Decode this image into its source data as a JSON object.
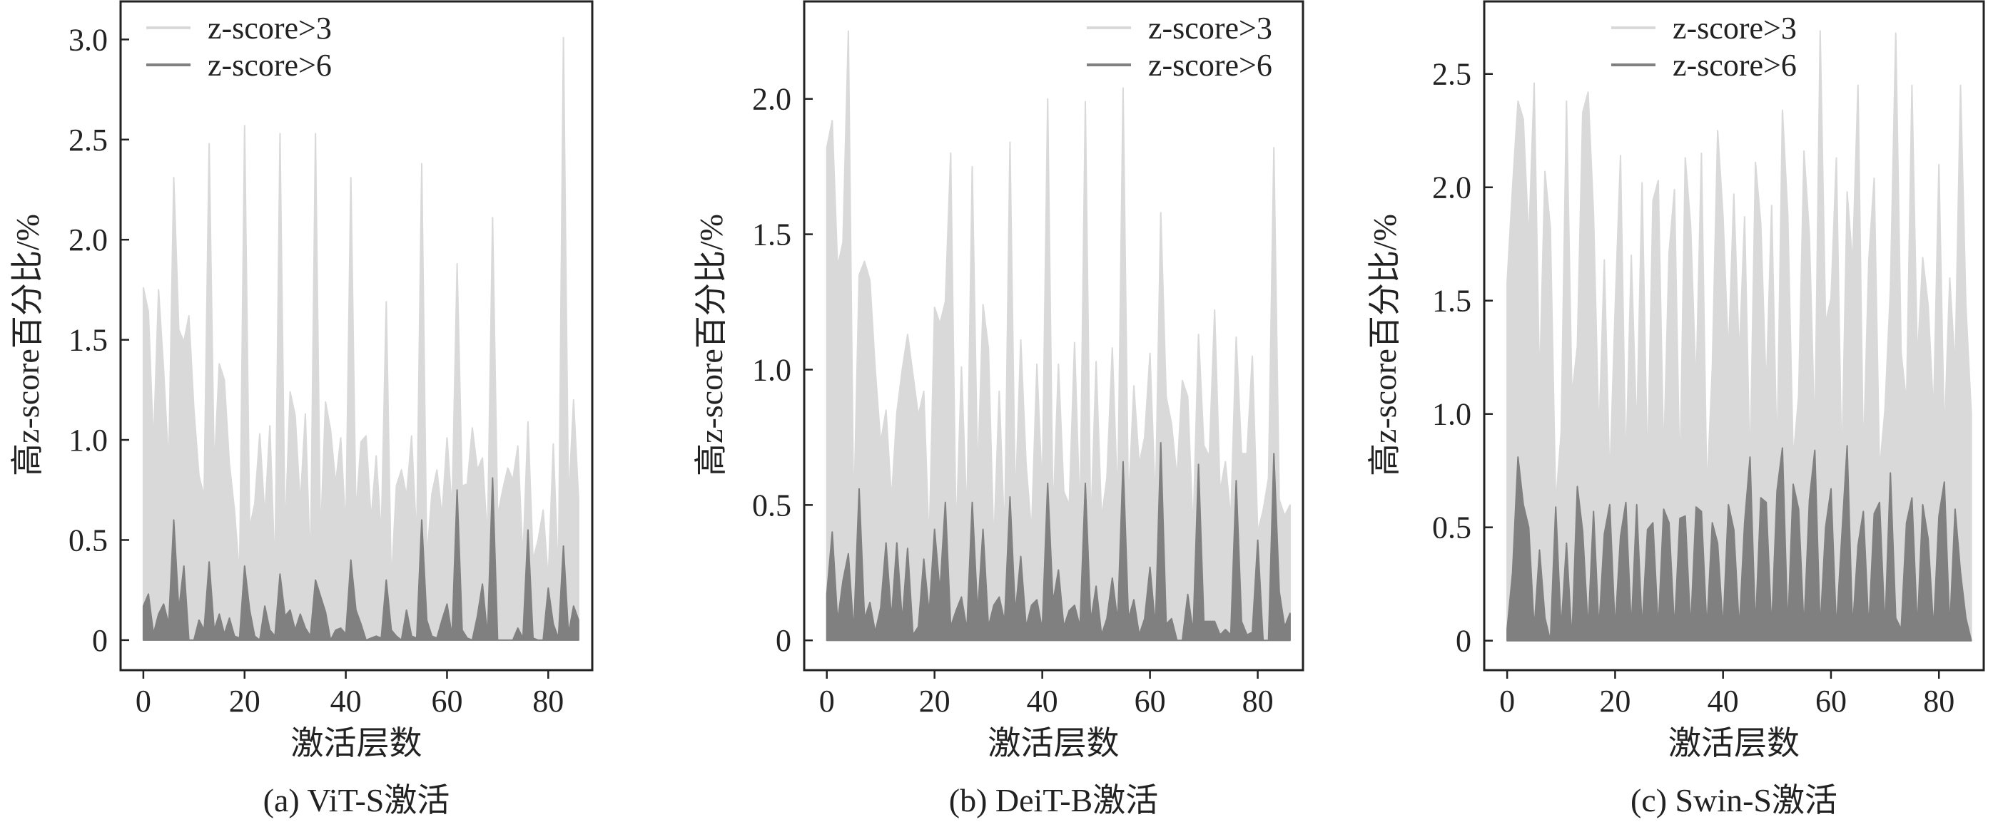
{
  "colors": {
    "z3": "#d9d9d9",
    "z6": "#808080",
    "axis": "#222222"
  },
  "chart_data": [
    {
      "type": "area",
      "caption": "(a)  ViT-S激活",
      "xlabel": "激活层数",
      "ylabel": "高z-score百分比/%",
      "xlim": [
        -4.5,
        88.7
      ],
      "ylim": [
        -0.15,
        3.19
      ],
      "xticks": [
        0,
        20,
        40,
        60,
        80
      ],
      "yticks": [
        0,
        0.5,
        1.0,
        1.5,
        2.0,
        2.5,
        3.0
      ],
      "ytick_labels": [
        "0",
        "0.5",
        "1.0",
        "1.5",
        "2.0",
        "2.5",
        "3.0"
      ],
      "legend": "upper-left",
      "series": [
        {
          "name": "z-score>3",
          "values": [
            1.76,
            1.64,
            0.97,
            1.75,
            1.35,
            0.87,
            2.31,
            1.55,
            1.49,
            1.62,
            1.15,
            0.82,
            0.72,
            2.48,
            0.85,
            1.38,
            1.3,
            0.88,
            0.65,
            0.32,
            2.57,
            0.56,
            0.68,
            1.03,
            0.62,
            1.07,
            0.34,
            2.53,
            0.52,
            1.24,
            1.12,
            0.68,
            1.13,
            0.35,
            2.53,
            0.5,
            1.19,
            1.05,
            0.78,
            1.01,
            0.55,
            2.31,
            0.63,
            0.99,
            1.02,
            0.6,
            0.92,
            0.52,
            1.69,
            0.28,
            0.77,
            0.85,
            0.72,
            1.02,
            0.5,
            2.38,
            0.4,
            0.73,
            0.85,
            0.62,
            1.01,
            0.65,
            1.88,
            0.77,
            0.78,
            1.06,
            0.85,
            0.91,
            0.5,
            2.11,
            0.62,
            0.75,
            0.86,
            0.8,
            0.97,
            0.4,
            1.09,
            0.4,
            0.5,
            0.65,
            0.3,
            0.98,
            0.3,
            3.01,
            0.68,
            1.2,
            0.7
          ]
        },
        {
          "name": "z-score>6",
          "values": [
            0.17,
            0.23,
            0.03,
            0.13,
            0.18,
            0.08,
            0.6,
            0.15,
            0.37,
            0.0,
            0.0,
            0.1,
            0.05,
            0.39,
            0.05,
            0.13,
            0.03,
            0.11,
            0.02,
            0.01,
            0.37,
            0.15,
            0.02,
            0.0,
            0.17,
            0.05,
            0.02,
            0.33,
            0.12,
            0.15,
            0.05,
            0.13,
            0.06,
            0.02,
            0.3,
            0.22,
            0.14,
            0.0,
            0.05,
            0.06,
            0.03,
            0.4,
            0.15,
            0.08,
            0.0,
            0.01,
            0.02,
            0.01,
            0.3,
            0.05,
            0.02,
            0.0,
            0.15,
            0.02,
            0.01,
            0.6,
            0.1,
            0.02,
            0.01,
            0.1,
            0.18,
            0.02,
            0.75,
            0.05,
            0.01,
            0.0,
            0.12,
            0.28,
            0.02,
            0.81,
            0.0,
            0.0,
            0.0,
            0.0,
            0.06,
            0.01,
            0.55,
            0.01,
            0.0,
            0.0,
            0.26,
            0.08,
            0.01,
            0.47,
            0.03,
            0.17,
            0.1
          ]
        }
      ]
    },
    {
      "type": "area",
      "caption": "(b)  DeiT-B激活",
      "xlabel": "激活层数",
      "ylabel": "高z-score百分比/%",
      "xlim": [
        -4.2,
        88.4
      ],
      "ylim": [
        -0.11,
        2.36
      ],
      "xticks": [
        0,
        20,
        40,
        60,
        80
      ],
      "yticks": [
        0,
        0.5,
        1.0,
        1.5,
        2.0
      ],
      "ytick_labels": [
        "0",
        "0.5",
        "1.0",
        "1.5",
        "2.0"
      ],
      "legend": "upper-right",
      "series": [
        {
          "name": "z-score>3",
          "values": [
            1.82,
            1.92,
            1.38,
            1.47,
            2.25,
            0.45,
            1.35,
            1.4,
            1.33,
            1.0,
            0.73,
            0.85,
            0.52,
            0.84,
            1.0,
            1.13,
            0.98,
            0.83,
            0.92,
            0.35,
            1.23,
            1.17,
            1.25,
            1.8,
            0.38,
            1.01,
            0.45,
            1.75,
            0.6,
            1.24,
            1.08,
            0.35,
            0.92,
            0.38,
            1.84,
            0.5,
            1.11,
            0.65,
            0.4,
            1.02,
            0.55,
            2.0,
            0.45,
            1.02,
            0.55,
            0.5,
            1.1,
            0.45,
            1.99,
            0.4,
            1.03,
            0.45,
            0.6,
            1.08,
            0.5,
            2.04,
            0.5,
            0.94,
            0.65,
            0.75,
            1.06,
            0.5,
            1.58,
            0.9,
            0.8,
            0.6,
            0.96,
            0.9,
            0.4,
            1.13,
            0.72,
            0.68,
            1.22,
            0.55,
            0.66,
            0.45,
            1.12,
            0.69,
            0.69,
            1.05,
            0.4,
            0.48,
            0.6,
            1.82,
            0.52,
            0.46,
            0.5
          ]
        },
        {
          "name": "z-score>6",
          "values": [
            0.17,
            0.4,
            0.07,
            0.22,
            0.32,
            0.03,
            0.56,
            0.08,
            0.14,
            0.03,
            0.12,
            0.36,
            0.08,
            0.36,
            0.07,
            0.34,
            0.02,
            0.05,
            0.3,
            0.1,
            0.41,
            0.18,
            0.51,
            0.05,
            0.11,
            0.16,
            0.04,
            0.51,
            0.1,
            0.41,
            0.05,
            0.13,
            0.16,
            0.07,
            0.53,
            0.1,
            0.31,
            0.05,
            0.13,
            0.15,
            0.04,
            0.58,
            0.14,
            0.26,
            0.05,
            0.11,
            0.13,
            0.05,
            0.58,
            0.07,
            0.2,
            0.02,
            0.08,
            0.23,
            0.07,
            0.66,
            0.08,
            0.15,
            0.02,
            0.08,
            0.27,
            0.05,
            0.73,
            0.06,
            0.08,
            0.0,
            0.0,
            0.17,
            0.03,
            0.65,
            0.07,
            0.07,
            0.07,
            0.02,
            0.04,
            0.02,
            0.59,
            0.07,
            0.02,
            0.03,
            0.37,
            0.0,
            0.0,
            0.69,
            0.18,
            0.05,
            0.1
          ]
        }
      ]
    },
    {
      "type": "area",
      "caption": "(c)  Swin-S激活",
      "xlabel": "激活层数",
      "ylabel": "高z-score百分比/%",
      "xlim": [
        -4.25,
        88.3
      ],
      "ylim": [
        -0.13,
        2.82
      ],
      "xticks": [
        0,
        20,
        40,
        60,
        80
      ],
      "yticks": [
        0,
        0.5,
        1.0,
        1.5,
        2.0,
        2.5
      ],
      "ytick_labels": [
        "0",
        "0.5",
        "1.0",
        "1.5",
        "2.0",
        "2.5"
      ],
      "legend": "upper-center",
      "series": [
        {
          "name": "z-score>3",
          "values": [
            1.58,
            2.0,
            2.38,
            2.3,
            1.76,
            2.46,
            1.12,
            2.07,
            1.82,
            0.6,
            0.92,
            2.38,
            1.08,
            1.3,
            2.33,
            2.42,
            1.88,
            0.9,
            1.68,
            0.7,
            1.46,
            2.14,
            0.75,
            1.7,
            0.91,
            2.02,
            0.75,
            1.94,
            2.03,
            0.8,
            1.71,
            1.99,
            0.7,
            2.13,
            1.83,
            1.11,
            2.15,
            0.65,
            1.2,
            2.25,
            1.87,
            1.26,
            1.97,
            1.25,
            1.87,
            0.75,
            2.11,
            1.84,
            1.1,
            1.92,
            0.8,
            2.34,
            1.88,
            0.8,
            1.08,
            2.16,
            1.79,
            0.9,
            2.69,
            1.4,
            1.51,
            2.13,
            0.75,
            1.98,
            1.66,
            2.45,
            0.8,
            1.68,
            2.04,
            0.75,
            1.02,
            1.55,
            2.68,
            1.27,
            1.05,
            2.45,
            1.23,
            1.69,
            1.48,
            1.0,
            2.1,
            0.9,
            1.6,
            1.2,
            2.45,
            1.48,
            1.0
          ]
        },
        {
          "name": "z-score>6",
          "values": [
            0.05,
            0.3,
            0.81,
            0.6,
            0.5,
            0.05,
            0.4,
            0.1,
            0.0,
            0.59,
            0.05,
            0.43,
            0.0,
            0.68,
            0.48,
            0.05,
            0.57,
            0.05,
            0.47,
            0.6,
            0.05,
            0.46,
            0.61,
            0.05,
            0.6,
            0.05,
            0.49,
            0.52,
            0.05,
            0.58,
            0.52,
            0.05,
            0.54,
            0.55,
            0.05,
            0.59,
            0.57,
            0.05,
            0.52,
            0.43,
            0.05,
            0.6,
            0.49,
            0.05,
            0.52,
            0.81,
            0.05,
            0.63,
            0.61,
            0.05,
            0.66,
            0.85,
            0.05,
            0.69,
            0.58,
            0.05,
            0.62,
            0.84,
            0.05,
            0.5,
            0.67,
            0.05,
            0.46,
            0.86,
            0.05,
            0.42,
            0.57,
            0.05,
            0.56,
            0.61,
            0.05,
            0.74,
            0.1,
            0.05,
            0.52,
            0.63,
            0.05,
            0.6,
            0.45,
            0.05,
            0.55,
            0.7,
            0.05,
            0.58,
            0.3,
            0.1,
            0.0
          ]
        }
      ]
    }
  ]
}
